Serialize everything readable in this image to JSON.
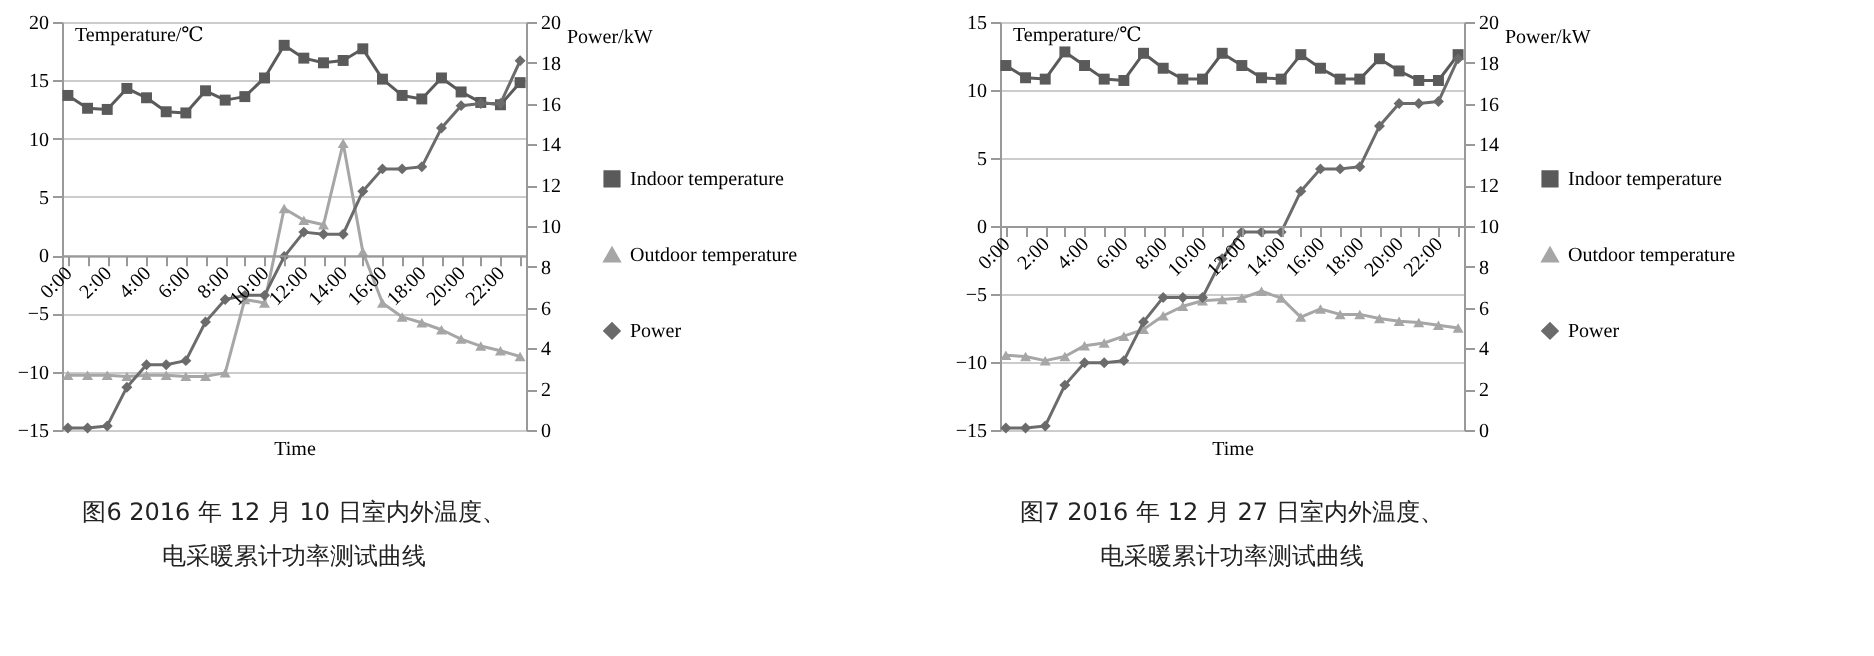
{
  "chart_data": [
    {
      "type": "line",
      "title": "图6 2016 年 12 月 10 日室内外温度、电采暖累计功率测试曲线",
      "xlabel": "Time",
      "ylabel": "Temperature/℃",
      "y2label": "Power/kW",
      "categories": [
        "0:00",
        null,
        "2:00",
        null,
        "4:00",
        null,
        "6:00",
        null,
        "8:00",
        null,
        "10:00",
        null,
        "12:00",
        null,
        "14:00",
        null,
        "16:00",
        null,
        "18:00",
        null,
        "20:00",
        null,
        "22:00",
        null
      ],
      "series": [
        {
          "name": "Indoor temperature",
          "color": "#5a5a5a",
          "marker": "square",
          "values": [
            13.7,
            12.6,
            12.5,
            14.3,
            13.5,
            12.3,
            12.2,
            14.1,
            13.3,
            13.6,
            15.2,
            18,
            16.9,
            16.5,
            16.7,
            17.7,
            15.1,
            13.7,
            13.4,
            15.2,
            14,
            13.1,
            12.9,
            14.8
          ]
        },
        {
          "name": "Outdoor temperature",
          "color": "#a6a6a6",
          "marker": "triangle",
          "values": [
            -10.3,
            -10.3,
            -10.3,
            -10.4,
            -10.3,
            -10.3,
            -10.4,
            -10.4,
            -10.1,
            -3.8,
            -4.1,
            4.0,
            3.0,
            2.6,
            9.6,
            0.3,
            -4.1,
            -5.3,
            -5.8,
            -6.4,
            -7.2,
            -7.8,
            -8.2,
            -8.7
          ]
        },
        {
          "name": "Power",
          "color": "#6b6b6b",
          "marker": "diamond",
          "axis": "y2",
          "values": [
            0.1,
            0.1,
            0.2,
            2.1,
            3.2,
            3.2,
            3.4,
            5.3,
            6.4,
            6.6,
            6.6,
            8.5,
            9.7,
            9.6,
            9.6,
            11.7,
            12.8,
            12.8,
            12.9,
            14.8,
            15.9,
            16.0,
            16.0,
            18.1
          ]
        }
      ],
      "ylim": [
        -15,
        20
      ],
      "yticks": [
        -15,
        -10,
        -5,
        0,
        5,
        10,
        15,
        20
      ],
      "y2lim": [
        0,
        20
      ],
      "y2ticks": [
        0,
        2,
        4,
        6,
        8,
        10,
        12,
        14,
        16,
        18,
        20
      ],
      "grid": "y",
      "legend": "right"
    },
    {
      "type": "line",
      "title": "图7 2016 年 12 月 27 日室内外温度、电采暖累计功率测试曲线",
      "xlabel": "Time",
      "ylabel": "Temperature/℃",
      "y2label": "Power/kW",
      "categories": [
        "0:00",
        null,
        "2:00",
        null,
        "4:00",
        null,
        "6:00",
        null,
        "8:00",
        null,
        "10:00",
        null,
        "12:00",
        null,
        "14:00",
        null,
        "16:00",
        null,
        "18:00",
        null,
        "20:00",
        null,
        "22:00",
        null
      ],
      "series": [
        {
          "name": "Indoor temperature",
          "color": "#5a5a5a",
          "marker": "square",
          "values": [
            11.8,
            10.9,
            10.8,
            12.8,
            11.8,
            10.8,
            10.7,
            12.7,
            11.6,
            10.8,
            10.8,
            12.7,
            11.8,
            10.9,
            10.8,
            12.6,
            11.6,
            10.8,
            10.8,
            12.3,
            11.4,
            10.7,
            10.7,
            12.6
          ]
        },
        {
          "name": "Outdoor temperature",
          "color": "#a6a6a6",
          "marker": "triangle",
          "values": [
            -9.5,
            -9.6,
            -9.9,
            -9.6,
            -8.8,
            -8.6,
            -8.1,
            -7.6,
            -6.6,
            -5.9,
            -5.5,
            -5.4,
            -5.3,
            -4.8,
            -5.3,
            -6.7,
            -6.1,
            -6.5,
            -6.5,
            -6.8,
            -7.0,
            -7.1,
            -7.3,
            -7.5
          ]
        },
        {
          "name": "Power",
          "color": "#6b6b6b",
          "marker": "diamond",
          "axis": "y2",
          "values": [
            0.1,
            0.1,
            0.2,
            2.2,
            3.3,
            3.3,
            3.4,
            5.3,
            6.5,
            6.5,
            6.5,
            8.4,
            9.7,
            9.7,
            9.7,
            11.7,
            12.8,
            12.8,
            12.9,
            14.9,
            16.0,
            16.0,
            16.1,
            18.2
          ]
        }
      ],
      "ylim": [
        -15,
        15
      ],
      "yticks": [
        -15,
        -10,
        -5,
        0,
        5,
        10,
        15
      ],
      "y2lim": [
        0,
        20
      ],
      "y2ticks": [
        0,
        2,
        4,
        6,
        8,
        10,
        12,
        14,
        16,
        18,
        20
      ],
      "grid": "y",
      "legend": "right"
    }
  ]
}
